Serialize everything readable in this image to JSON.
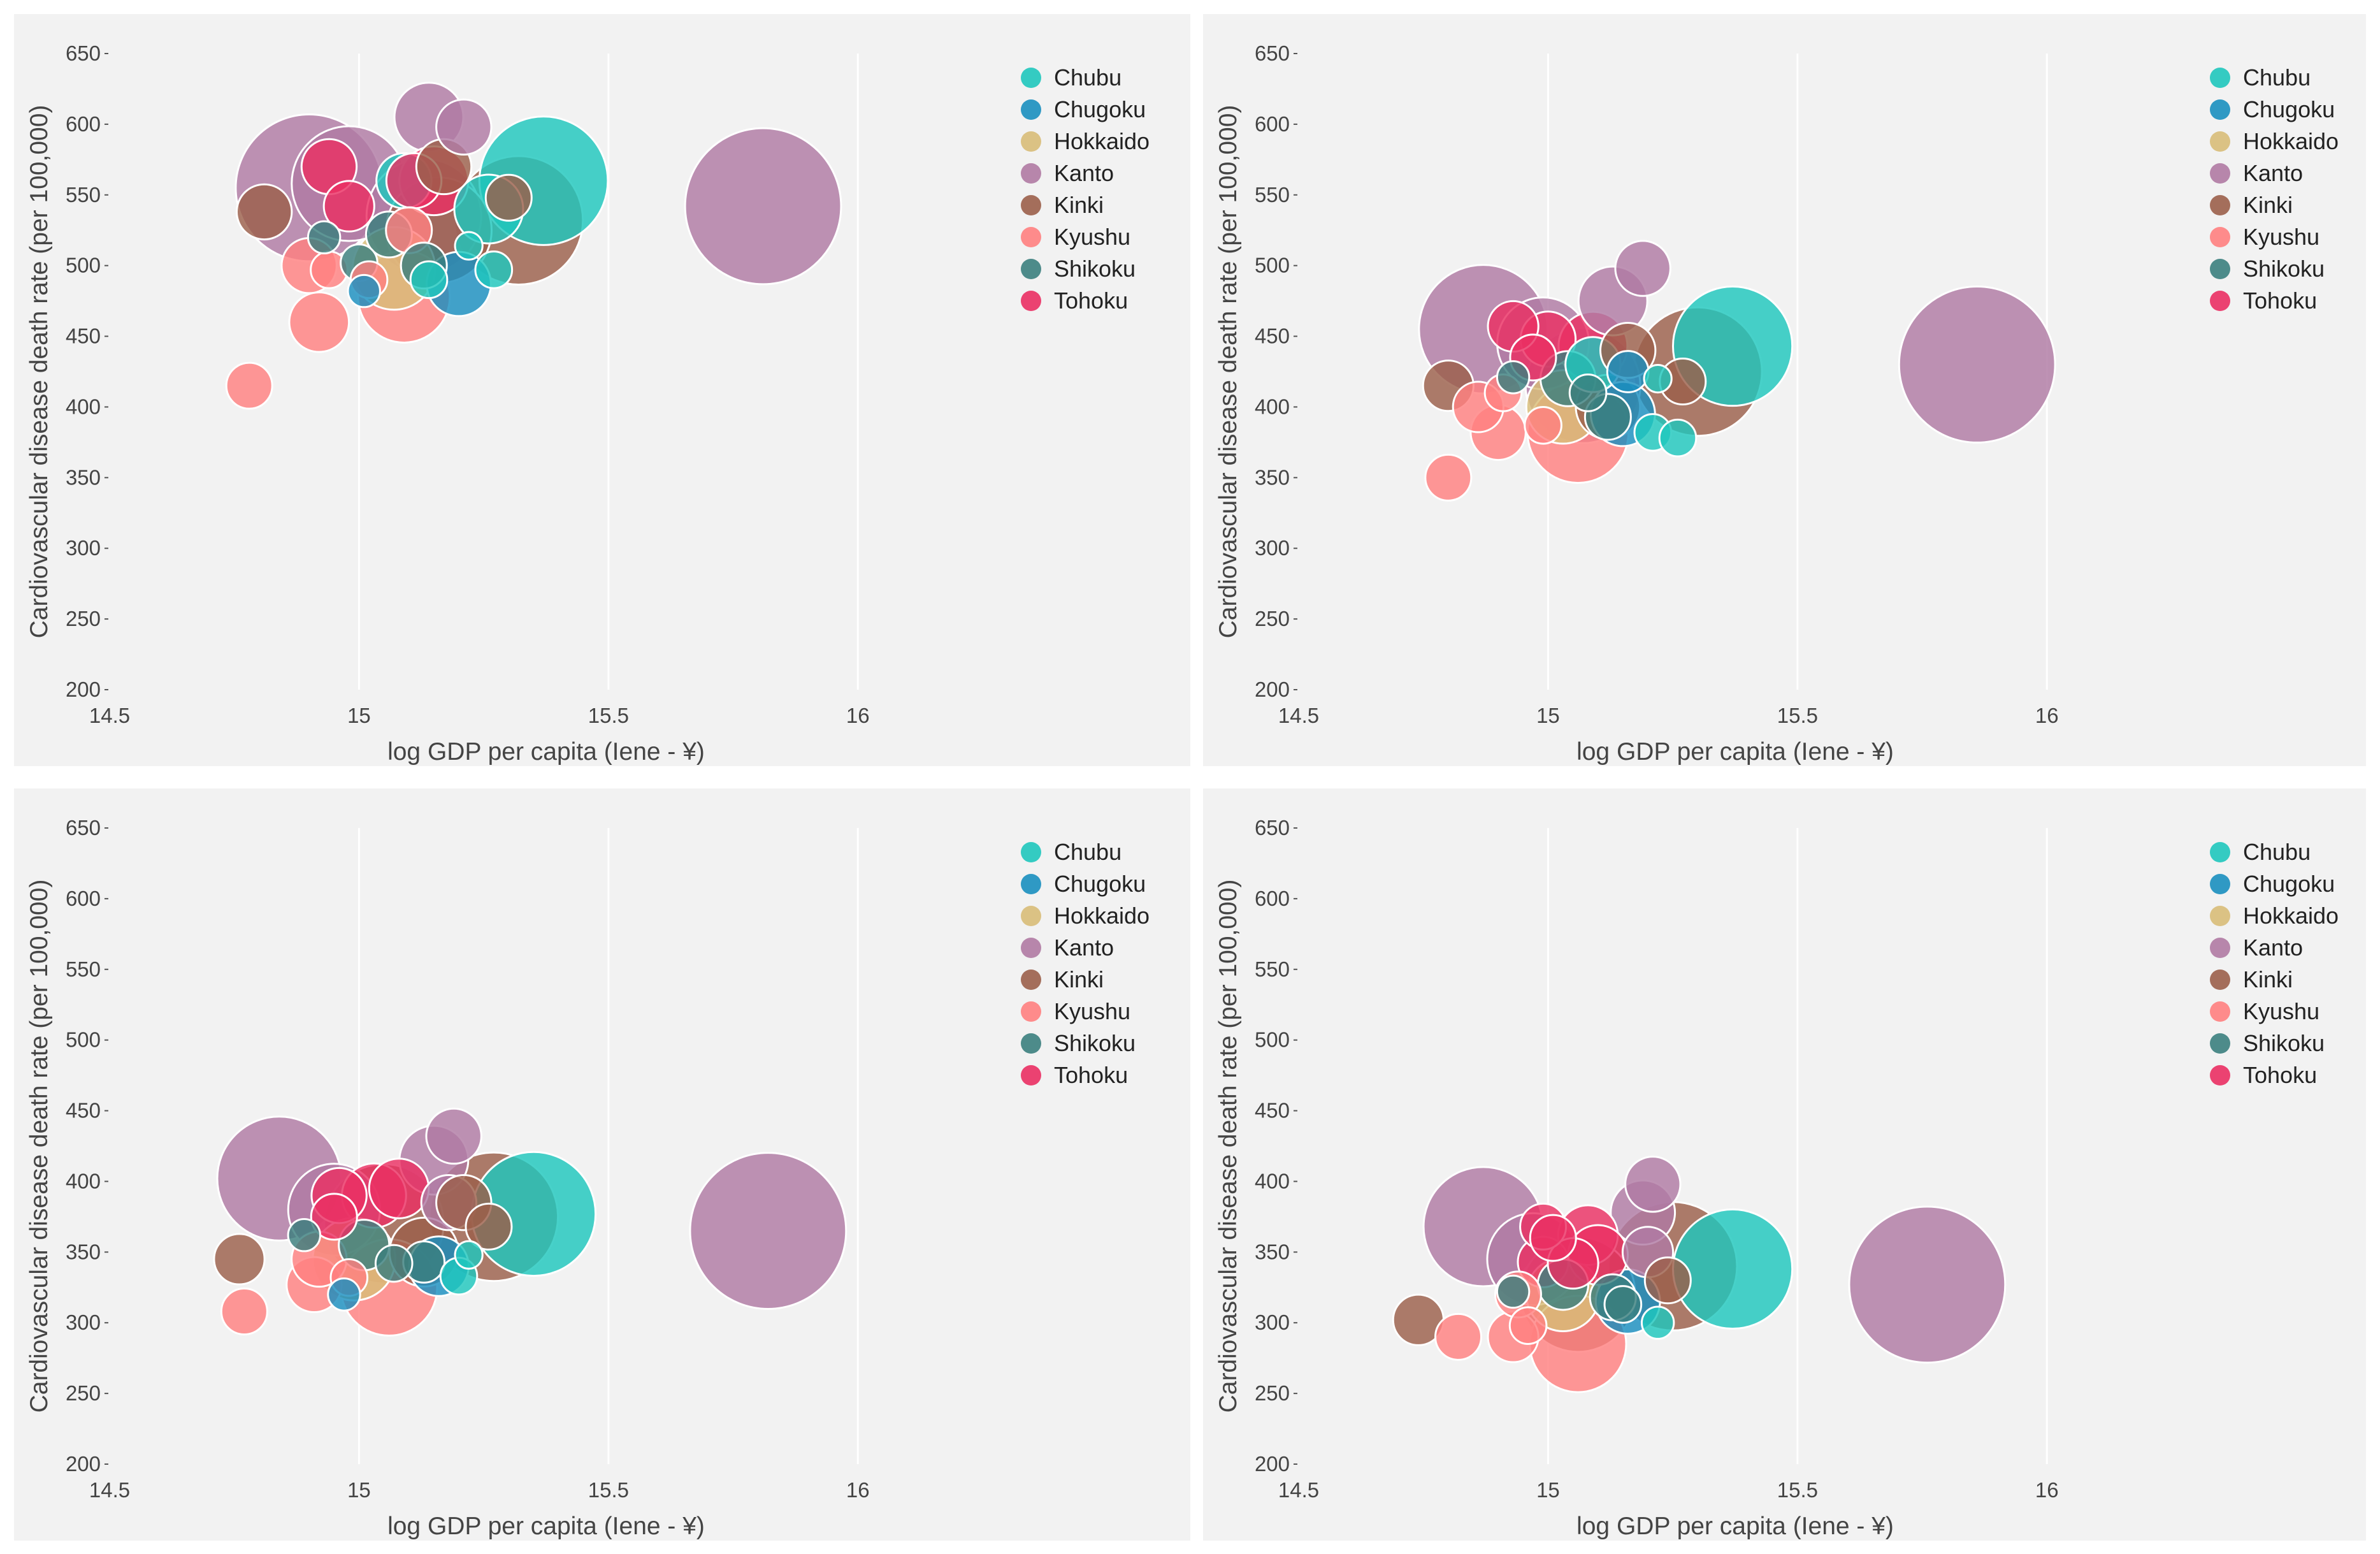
{
  "regions": [
    {
      "name": "Chubu",
      "color": "#1fc7bd"
    },
    {
      "name": "Chugoku",
      "color": "#1a8fbf"
    },
    {
      "name": "Hokkaido",
      "color": "#d8bd78"
    },
    {
      "name": "Kanto",
      "color": "#b07aa3"
    },
    {
      "name": "Kinki",
      "color": "#9b5f4a"
    },
    {
      "name": "Kyushu",
      "color": "#ff8080"
    },
    {
      "name": "Shikoku",
      "color": "#3b7f7e"
    },
    {
      "name": "Tohoku",
      "color": "#ea2f63"
    }
  ],
  "chart_data": [
    {
      "type": "scatter",
      "xlabel": "log GDP per capita (Iene - ¥)",
      "ylabel": "Cardiovascular disease death rate (per 100,000)",
      "xlim": [
        14.5,
        16.25
      ],
      "ylim": [
        200,
        650
      ],
      "xticks": [
        "14.5",
        "15",
        "15.5",
        "16"
      ],
      "yticks": [
        "200",
        "250",
        "300",
        "350",
        "400",
        "450",
        "500",
        "550",
        "600",
        "650"
      ],
      "legend": "top-right",
      "points": [
        {
          "region": "Kyushu",
          "x": 14.78,
          "y": 415,
          "size": 1
        },
        {
          "region": "Kinki",
          "x": 14.81,
          "y": 538,
          "size": 1.2
        },
        {
          "region": "Kanto",
          "x": 14.9,
          "y": 555,
          "size": 3.2
        },
        {
          "region": "Kyushu",
          "x": 14.9,
          "y": 500,
          "size": 1.2
        },
        {
          "region": "Kyushu",
          "x": 14.92,
          "y": 460,
          "size": 1.3
        },
        {
          "region": "Shikoku",
          "x": 14.93,
          "y": 520,
          "size": 0.7
        },
        {
          "region": "Kyushu",
          "x": 14.94,
          "y": 497,
          "size": 0.8
        },
        {
          "region": "Tohoku",
          "x": 14.94,
          "y": 570,
          "size": 1.2
        },
        {
          "region": "Kanto",
          "x": 14.98,
          "y": 558,
          "size": 2.5
        },
        {
          "region": "Tohoku",
          "x": 14.98,
          "y": 542,
          "size": 1.1
        },
        {
          "region": "Shikoku",
          "x": 15,
          "y": 502,
          "size": 0.8
        },
        {
          "region": "Chugoku",
          "x": 15.01,
          "y": 482,
          "size": 0.7
        },
        {
          "region": "Kyushu",
          "x": 15.02,
          "y": 490,
          "size": 0.8
        },
        {
          "region": "Shikoku",
          "x": 15.06,
          "y": 522,
          "size": 1
        },
        {
          "region": "Hokkaido",
          "x": 15.07,
          "y": 498,
          "size": 1.8
        },
        {
          "region": "Chubu",
          "x": 15.09,
          "y": 560,
          "size": 1.2
        },
        {
          "region": "Kyushu",
          "x": 15.09,
          "y": 478,
          "size": 2
        },
        {
          "region": "Kyushu",
          "x": 15.1,
          "y": 525,
          "size": 1
        },
        {
          "region": "Kanto",
          "x": 15.14,
          "y": 605,
          "size": 1.5
        },
        {
          "region": "Kanto",
          "x": 15.13,
          "y": 535,
          "size": 2.5
        },
        {
          "region": "Tohoku",
          "x": 15.11,
          "y": 560,
          "size": 1.2
        },
        {
          "region": "Shikoku",
          "x": 15.13,
          "y": 500,
          "size": 1
        },
        {
          "region": "Chubu",
          "x": 15.14,
          "y": 490,
          "size": 0.8
        },
        {
          "region": "Tohoku",
          "x": 15.15,
          "y": 560,
          "size": 1.5
        },
        {
          "region": "Kinki",
          "x": 15.16,
          "y": 525,
          "size": 2.3
        },
        {
          "region": "Kinki",
          "x": 15.17,
          "y": 570,
          "size": 1.2
        },
        {
          "region": "Chugoku",
          "x": 15.2,
          "y": 487,
          "size": 1.4
        },
        {
          "region": "Kanto",
          "x": 15.21,
          "y": 598,
          "size": 1.2
        },
        {
          "region": "Chubu",
          "x": 15.22,
          "y": 514,
          "size": 0.6
        },
        {
          "region": "Chubu",
          "x": 15.26,
          "y": 540,
          "size": 1.5
        },
        {
          "region": "Chubu",
          "x": 15.27,
          "y": 497,
          "size": 0.8
        },
        {
          "region": "Kinki",
          "x": 15.32,
          "y": 532,
          "size": 2.8
        },
        {
          "region": "Kinki",
          "x": 15.3,
          "y": 548,
          "size": 1
        },
        {
          "region": "Chubu",
          "x": 15.37,
          "y": 560,
          "size": 2.8
        },
        {
          "region": "Kanto",
          "x": 15.81,
          "y": 542,
          "size": 3.4
        }
      ]
    },
    {
      "type": "scatter",
      "xlabel": "log GDP per capita (Iene - ¥)",
      "ylabel": "Cardiovascular disease death rate (per 100,000)",
      "xlim": [
        14.5,
        16.25
      ],
      "ylim": [
        200,
        650
      ],
      "xticks": [
        "14.5",
        "15",
        "15.5",
        "16"
      ],
      "yticks": [
        "200",
        "250",
        "300",
        "350",
        "400",
        "450",
        "500",
        "550",
        "600",
        "650"
      ],
      "legend": "top-right",
      "points": [
        {
          "region": "Kyushu",
          "x": 14.8,
          "y": 350,
          "size": 1
        },
        {
          "region": "Kinki",
          "x": 14.8,
          "y": 415,
          "size": 1.1
        },
        {
          "region": "Kanto",
          "x": 14.87,
          "y": 455,
          "size": 2.8
        },
        {
          "region": "Kyushu",
          "x": 14.86,
          "y": 400,
          "size": 1.1
        },
        {
          "region": "Kyushu",
          "x": 14.9,
          "y": 382,
          "size": 1.2
        },
        {
          "region": "Kyushu",
          "x": 14.91,
          "y": 410,
          "size": 0.8
        },
        {
          "region": "Tohoku",
          "x": 14.93,
          "y": 457,
          "size": 1.1
        },
        {
          "region": "Shikoku",
          "x": 14.93,
          "y": 421,
          "size": 0.7
        },
        {
          "region": "Tohoku",
          "x": 14.97,
          "y": 435,
          "size": 1
        },
        {
          "region": "Kanto",
          "x": 14.99,
          "y": 445,
          "size": 2
        },
        {
          "region": "Kyushu",
          "x": 14.99,
          "y": 387,
          "size": 0.8
        },
        {
          "region": "Tohoku",
          "x": 15,
          "y": 448,
          "size": 1.2
        },
        {
          "region": "Hokkaido",
          "x": 15.03,
          "y": 400,
          "size": 1.6
        },
        {
          "region": "Shikoku",
          "x": 15.04,
          "y": 420,
          "size": 1.2
        },
        {
          "region": "Kyushu",
          "x": 15.06,
          "y": 382,
          "size": 2.2
        },
        {
          "region": "Kanto",
          "x": 15.07,
          "y": 415,
          "size": 2.5
        },
        {
          "region": "Tohoku",
          "x": 15.09,
          "y": 443,
          "size": 1.5
        },
        {
          "region": "Chubu",
          "x": 15.09,
          "y": 430,
          "size": 1.2
        },
        {
          "region": "Shikoku",
          "x": 15.08,
          "y": 410,
          "size": 0.8
        },
        {
          "region": "Kinki",
          "x": 15.12,
          "y": 400,
          "size": 1.4
        },
        {
          "region": "Shikoku",
          "x": 15.12,
          "y": 393,
          "size": 1
        },
        {
          "region": "Chugoku",
          "x": 15.15,
          "y": 395,
          "size": 1.4
        },
        {
          "region": "Kanto",
          "x": 15.13,
          "y": 475,
          "size": 1.5
        },
        {
          "region": "Chugoku",
          "x": 15.16,
          "y": 425,
          "size": 0.9
        },
        {
          "region": "Kinki",
          "x": 15.16,
          "y": 440,
          "size": 1.2
        },
        {
          "region": "Kanto",
          "x": 15.19,
          "y": 498,
          "size": 1.2
        },
        {
          "region": "Chubu",
          "x": 15.21,
          "y": 382,
          "size": 0.8
        },
        {
          "region": "Chubu",
          "x": 15.22,
          "y": 420,
          "size": 0.6
        },
        {
          "region": "Chubu",
          "x": 15.26,
          "y": 378,
          "size": 0.8
        },
        {
          "region": "Kinki",
          "x": 15.3,
          "y": 425,
          "size": 2.8
        },
        {
          "region": "Kinki",
          "x": 15.27,
          "y": 418,
          "size": 1
        },
        {
          "region": "Chubu",
          "x": 15.37,
          "y": 443,
          "size": 2.6
        },
        {
          "region": "Kanto",
          "x": 15.86,
          "y": 430,
          "size": 3.4
        }
      ]
    },
    {
      "type": "scatter",
      "xlabel": "log GDP per capita (Iene - ¥)",
      "ylabel": "Cardiovascular disease death rate (per 100,000)",
      "xlim": [
        14.5,
        16.25
      ],
      "ylim": [
        200,
        650
      ],
      "xticks": [
        "14.5",
        "15",
        "15.5",
        "16"
      ],
      "yticks": [
        "200",
        "250",
        "300",
        "350",
        "400",
        "450",
        "500",
        "550",
        "600",
        "650"
      ],
      "legend": "top-right",
      "points": [
        {
          "region": "Kyushu",
          "x": 14.77,
          "y": 308,
          "size": 1
        },
        {
          "region": "Kinki",
          "x": 14.76,
          "y": 345,
          "size": 1.1
        },
        {
          "region": "Kanto",
          "x": 14.84,
          "y": 402,
          "size": 2.7
        },
        {
          "region": "Shikoku",
          "x": 14.89,
          "y": 362,
          "size": 0.7
        },
        {
          "region": "Kyushu",
          "x": 14.91,
          "y": 327,
          "size": 1.2
        },
        {
          "region": "Kyushu",
          "x": 14.92,
          "y": 345,
          "size": 1.2
        },
        {
          "region": "Kanto",
          "x": 14.95,
          "y": 380,
          "size": 2
        },
        {
          "region": "Tohoku",
          "x": 14.95,
          "y": 375,
          "size": 1
        },
        {
          "region": "Tohoku",
          "x": 14.96,
          "y": 390,
          "size": 1.2
        },
        {
          "region": "Chugoku",
          "x": 14.97,
          "y": 320,
          "size": 0.7
        },
        {
          "region": "Hokkaido",
          "x": 14.99,
          "y": 345,
          "size": 1.8
        },
        {
          "region": "Kyushu",
          "x": 14.98,
          "y": 332,
          "size": 0.8
        },
        {
          "region": "Kinki",
          "x": 15.05,
          "y": 370,
          "size": 2.6
        },
        {
          "region": "Shikoku",
          "x": 15.01,
          "y": 355,
          "size": 1.1
        },
        {
          "region": "Tohoku",
          "x": 15.03,
          "y": 390,
          "size": 1.4
        },
        {
          "region": "Kyushu",
          "x": 15.06,
          "y": 325,
          "size": 2.1
        },
        {
          "region": "Shikoku",
          "x": 15.07,
          "y": 342,
          "size": 0.8
        },
        {
          "region": "Tohoku",
          "x": 15.08,
          "y": 395,
          "size": 1.3
        },
        {
          "region": "Kinki",
          "x": 15.13,
          "y": 350,
          "size": 1.5
        },
        {
          "region": "Chugoku",
          "x": 15.16,
          "y": 340,
          "size": 1.3
        },
        {
          "region": "Shikoku",
          "x": 15.13,
          "y": 343,
          "size": 0.9
        },
        {
          "region": "Kanto",
          "x": 15.15,
          "y": 415,
          "size": 1.5
        },
        {
          "region": "Kanto",
          "x": 15.19,
          "y": 432,
          "size": 1.2
        },
        {
          "region": "Kanto",
          "x": 15.18,
          "y": 385,
          "size": 1.2
        },
        {
          "region": "Chubu",
          "x": 15.2,
          "y": 333,
          "size": 0.8
        },
        {
          "region": "Chubu",
          "x": 15.22,
          "y": 348,
          "size": 0.6
        },
        {
          "region": "Kinki",
          "x": 15.21,
          "y": 385,
          "size": 1.2
        },
        {
          "region": "Kinki",
          "x": 15.27,
          "y": 375,
          "size": 2.8
        },
        {
          "region": "Kinki",
          "x": 15.26,
          "y": 368,
          "size": 1
        },
        {
          "region": "Chubu",
          "x": 15.35,
          "y": 377,
          "size": 2.7
        },
        {
          "region": "Kanto",
          "x": 15.82,
          "y": 365,
          "size": 3.4
        }
      ]
    },
    {
      "type": "scatter",
      "xlabel": "log GDP per capita (Iene - ¥)",
      "ylabel": "Cardiovascular disease death rate (per 100,000)",
      "xlim": [
        14.5,
        16.25
      ],
      "ylim": [
        200,
        650
      ],
      "xticks": [
        "14.5",
        "15",
        "15.5",
        "16"
      ],
      "yticks": [
        "200",
        "250",
        "300",
        "350",
        "400",
        "450",
        "500",
        "550",
        "600",
        "650"
      ],
      "legend": "top-right",
      "points": [
        {
          "region": "Kinki",
          "x": 14.74,
          "y": 302,
          "size": 1.1
        },
        {
          "region": "Kyushu",
          "x": 14.82,
          "y": 290,
          "size": 1
        },
        {
          "region": "Kanto",
          "x": 14.87,
          "y": 368,
          "size": 2.6
        },
        {
          "region": "Kyushu",
          "x": 14.93,
          "y": 290,
          "size": 1.1
        },
        {
          "region": "Kyushu",
          "x": 14.94,
          "y": 320,
          "size": 1
        },
        {
          "region": "Shikoku",
          "x": 14.93,
          "y": 322,
          "size": 0.7
        },
        {
          "region": "Kanto",
          "x": 14.97,
          "y": 345,
          "size": 2
        },
        {
          "region": "Kyushu",
          "x": 14.96,
          "y": 298,
          "size": 0.8
        },
        {
          "region": "Tohoku",
          "x": 14.99,
          "y": 368,
          "size": 1
        },
        {
          "region": "Tohoku",
          "x": 14.99,
          "y": 343,
          "size": 1.1
        },
        {
          "region": "Tohoku",
          "x": 15.01,
          "y": 360,
          "size": 1
        },
        {
          "region": "Hokkaido",
          "x": 15.03,
          "y": 320,
          "size": 1.6
        },
        {
          "region": "Shikoku",
          "x": 15.03,
          "y": 327,
          "size": 1.1
        },
        {
          "region": "Kyushu",
          "x": 15.06,
          "y": 285,
          "size": 2.1
        },
        {
          "region": "Kinki",
          "x": 15.06,
          "y": 320,
          "size": 2.5
        },
        {
          "region": "Tohoku",
          "x": 15.05,
          "y": 342,
          "size": 1.1
        },
        {
          "region": "Tohoku",
          "x": 15.08,
          "y": 362,
          "size": 1.3
        },
        {
          "region": "Tohoku",
          "x": 15.1,
          "y": 348,
          "size": 1.3
        },
        {
          "region": "Chugoku",
          "x": 15.16,
          "y": 315,
          "size": 1.4
        },
        {
          "region": "Shikoku",
          "x": 15.13,
          "y": 318,
          "size": 1
        },
        {
          "region": "Shikoku",
          "x": 15.15,
          "y": 313,
          "size": 0.8
        },
        {
          "region": "Kanto",
          "x": 15.19,
          "y": 378,
          "size": 1.4
        },
        {
          "region": "Kanto",
          "x": 15.21,
          "y": 398,
          "size": 1.2
        },
        {
          "region": "Kanto",
          "x": 15.2,
          "y": 350,
          "size": 1.1
        },
        {
          "region": "Chubu",
          "x": 15.22,
          "y": 300,
          "size": 0.7
        },
        {
          "region": "Kinki",
          "x": 15.25,
          "y": 340,
          "size": 2.8
        },
        {
          "region": "Kinki",
          "x": 15.24,
          "y": 330,
          "size": 1
        },
        {
          "region": "Chubu",
          "x": 15.37,
          "y": 338,
          "size": 2.6
        },
        {
          "region": "Kanto",
          "x": 15.76,
          "y": 327,
          "size": 3.4
        }
      ]
    }
  ]
}
